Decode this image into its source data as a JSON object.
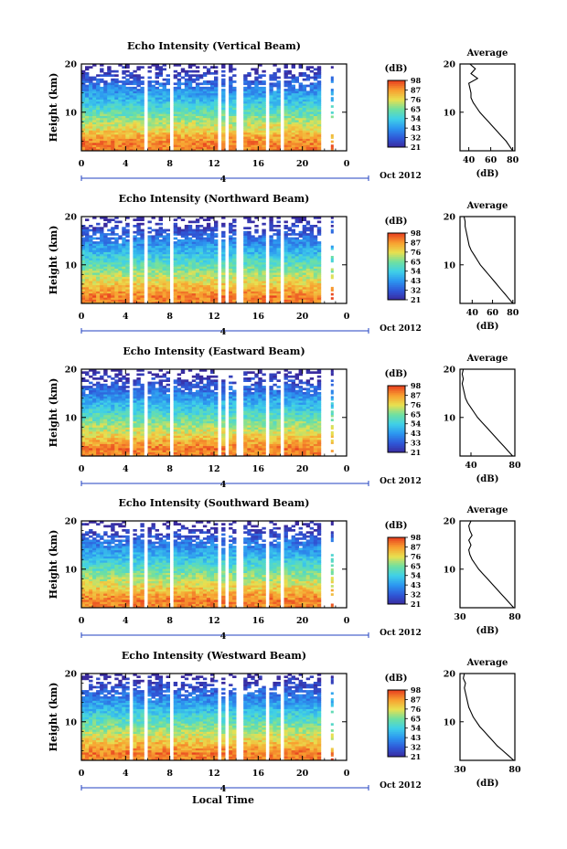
{
  "x_axis_label": "Local Time",
  "date_label": "Oct 2012",
  "day_label": "4",
  "colorbar_unit": "(dB)",
  "average_title": "Average",
  "average_xlabel": "(dB)",
  "y_axis_label": "Height (km)",
  "chart_data": [
    {
      "type": "heatmap",
      "title": "Echo Intensity (Vertical Beam)",
      "xlabel": "Local Time",
      "ylabel": "Height (km)",
      "xticks": [
        "0",
        "4",
        "8",
        "12",
        "16",
        "20",
        "0"
      ],
      "xlim": [
        0,
        24
      ],
      "yticks": [
        "10",
        "20"
      ],
      "ylim": [
        2,
        20
      ],
      "colorbar": {
        "unit": "(dB)",
        "levels": [
          "21",
          "32",
          "43",
          "54",
          "65",
          "76",
          "87",
          "98"
        ]
      },
      "gaps_hours": [
        5.8,
        8.3,
        12.6,
        13.3,
        14.1,
        14.6,
        16.9,
        18.2
      ],
      "profile": {
        "title": "Average",
        "xlabel": "(dB)",
        "xticks": [
          "40",
          "60",
          "80"
        ],
        "xlim": [
          32,
          82
        ],
        "heights": [
          2,
          3,
          4,
          5,
          6,
          7,
          8,
          9,
          10,
          11,
          12,
          13,
          14,
          15,
          16,
          17,
          18,
          19,
          20
        ],
        "values": [
          80,
          77,
          74,
          70,
          66,
          62,
          58,
          54,
          50,
          47,
          44,
          42,
          42,
          41,
          40,
          48,
          42,
          46,
          41
        ]
      }
    },
    {
      "type": "heatmap",
      "title": "Echo Intensity (Northward Beam)",
      "xlabel": "Local Time",
      "ylabel": "Height (km)",
      "xticks": [
        "0",
        "4",
        "8",
        "12",
        "16",
        "20",
        "0"
      ],
      "xlim": [
        0,
        24
      ],
      "yticks": [
        "10",
        "20"
      ],
      "ylim": [
        2,
        20
      ],
      "colorbar": {
        "unit": "(dB)",
        "levels": [
          "21",
          "32",
          "43",
          "54",
          "65",
          "76",
          "87",
          "98"
        ]
      },
      "gaps_hours": [
        4.5,
        5.8,
        8.3,
        12.6,
        13.3,
        14.1,
        14.6,
        16.9,
        18.2
      ],
      "profile": {
        "title": "Average",
        "xlabel": "(dB)",
        "xticks": [
          "40",
          "60",
          "80"
        ],
        "xlim": [
          28,
          82
        ],
        "heights": [
          2,
          3,
          4,
          5,
          6,
          7,
          8,
          9,
          10,
          11,
          12,
          13,
          14,
          15,
          16,
          17,
          18,
          19,
          20
        ],
        "values": [
          80,
          76,
          72,
          68,
          64,
          60,
          56,
          52,
          48,
          45,
          42,
          39,
          37,
          36,
          35,
          34,
          33,
          33,
          32
        ]
      }
    },
    {
      "type": "heatmap",
      "title": "Echo Intensity (Eastward Beam)",
      "xlabel": "Local Time",
      "ylabel": "Height (km)",
      "xticks": [
        "0",
        "4",
        "8",
        "12",
        "16",
        "20",
        "0"
      ],
      "xlim": [
        0,
        24
      ],
      "yticks": [
        "10",
        "20"
      ],
      "ylim": [
        2,
        20
      ],
      "colorbar": {
        "unit": "(dB)",
        "levels": [
          "21",
          "33",
          "43",
          "54",
          "65",
          "76",
          "87",
          "98"
        ]
      },
      "gaps_hours": [
        4.5,
        5.8,
        8.3,
        12.6,
        13.3,
        14.1,
        14.6,
        16.9,
        18.2
      ],
      "profile": {
        "title": "Average",
        "xlabel": "(dB)",
        "xticks": [
          "40",
          "80"
        ],
        "xlim": [
          30,
          80
        ],
        "heights": [
          2,
          3,
          4,
          5,
          6,
          7,
          8,
          9,
          10,
          11,
          12,
          13,
          14,
          15,
          16,
          17,
          18,
          19,
          20
        ],
        "values": [
          78,
          74,
          70,
          66,
          62,
          58,
          54,
          50,
          46,
          43,
          40,
          37,
          35,
          34,
          33,
          32,
          33,
          32,
          33
        ]
      }
    },
    {
      "type": "heatmap",
      "title": "Echo Intensity (Southward Beam)",
      "xlabel": "Local Time",
      "ylabel": "Height (km)",
      "xticks": [
        "0",
        "4",
        "8",
        "12",
        "16",
        "20",
        "0"
      ],
      "xlim": [
        0,
        24
      ],
      "yticks": [
        "10",
        "20"
      ],
      "ylim": [
        2,
        20
      ],
      "colorbar": {
        "unit": "(dB)",
        "levels": [
          "21",
          "32",
          "43",
          "54",
          "65",
          "76",
          "87",
          "98"
        ]
      },
      "gaps_hours": [
        4.5,
        5.8,
        8.3,
        12.6,
        13.3,
        14.1,
        14.6,
        16.9,
        18.2
      ],
      "profile": {
        "title": "Average",
        "xlabel": "(dB)",
        "xticks": [
          "30",
          "80"
        ],
        "xlim": [
          30,
          80
        ],
        "heights": [
          2,
          3,
          4,
          5,
          6,
          7,
          8,
          9,
          10,
          11,
          12,
          13,
          14,
          15,
          16,
          17,
          18,
          19,
          20
        ],
        "values": [
          79,
          75,
          71,
          67,
          63,
          59,
          55,
          51,
          47,
          44,
          41,
          39,
          38,
          40,
          38,
          41,
          39,
          38,
          40
        ]
      }
    },
    {
      "type": "heatmap",
      "title": "Echo Intensity (Westward Beam)",
      "xlabel": "Local Time",
      "ylabel": "Height (km)",
      "xticks": [
        "0",
        "4",
        "8",
        "12",
        "16",
        "20",
        "0"
      ],
      "xlim": [
        0,
        24
      ],
      "yticks": [
        "10",
        "20"
      ],
      "ylim": [
        2,
        20
      ],
      "colorbar": {
        "unit": "(dB)",
        "levels": [
          "21",
          "32",
          "43",
          "54",
          "65",
          "76",
          "87",
          "98"
        ]
      },
      "gaps_hours": [
        4.5,
        5.8,
        8.3,
        12.6,
        13.3,
        14.1,
        14.6,
        16.9,
        18.2
      ],
      "profile": {
        "title": "Average",
        "xlabel": "(dB)",
        "xticks": [
          "30",
          "80"
        ],
        "xlim": [
          30,
          80
        ],
        "heights": [
          2,
          3,
          4,
          5,
          6,
          7,
          8,
          9,
          10,
          11,
          12,
          13,
          14,
          15,
          16,
          17,
          18,
          19,
          20
        ],
        "values": [
          79,
          74,
          69,
          64,
          60,
          56,
          52,
          48,
          45,
          42,
          40,
          38,
          37,
          36,
          35,
          34,
          35,
          33,
          34
        ]
      }
    }
  ]
}
